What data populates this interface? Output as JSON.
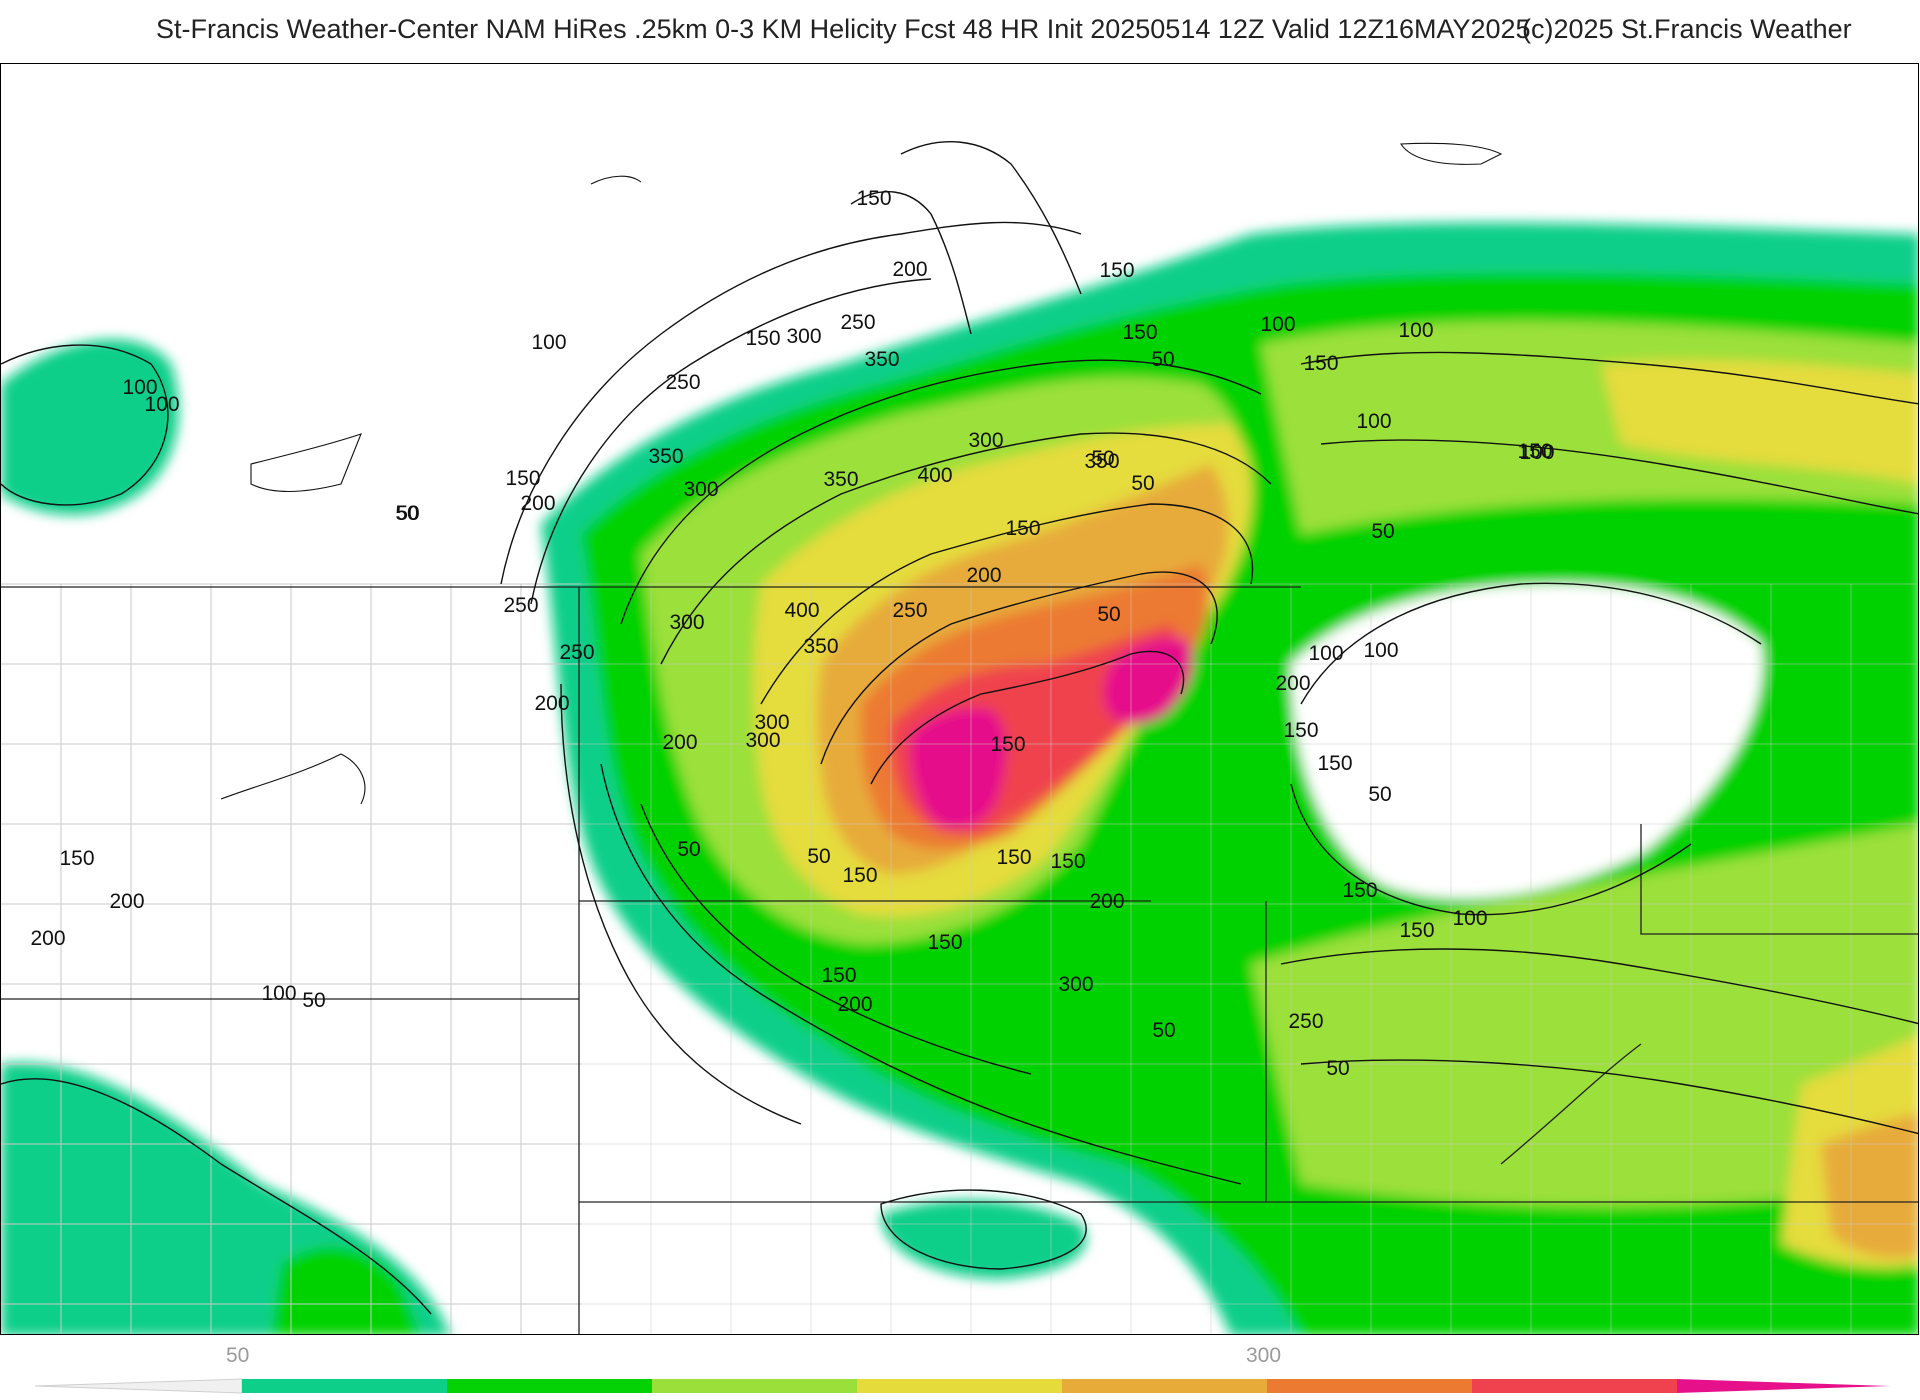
{
  "header": {
    "title": "St-Francis Weather-Center NAM HiRes .25km 0-3 KM Helicity Fcst 48 HR Init 20250514 12Z  Valid 12Z16MAY2025",
    "copyright": "(c)2025 St.Francis Weather"
  },
  "legend": {
    "tick_labels": [
      "50",
      "300"
    ],
    "colors": [
      "#0dcf8a",
      "#05d205",
      "#9be03a",
      "#e5dc3c",
      "#e7ab3a",
      "#ec7a30",
      "#f0424e",
      "#e6108b"
    ]
  },
  "contour_labels": [
    {
      "text": "150"
    },
    {
      "text": "100"
    },
    {
      "text": "150"
    },
    {
      "text": "300"
    },
    {
      "text": "200"
    },
    {
      "text": "250"
    },
    {
      "text": "350"
    },
    {
      "text": "250"
    },
    {
      "text": "300"
    },
    {
      "text": "350"
    },
    {
      "text": "350"
    },
    {
      "text": "400"
    },
    {
      "text": "350"
    },
    {
      "text": "150"
    },
    {
      "text": "200"
    },
    {
      "text": "150"
    },
    {
      "text": "50"
    },
    {
      "text": "250"
    },
    {
      "text": "300"
    },
    {
      "text": "400"
    },
    {
      "text": "300"
    },
    {
      "text": "250"
    },
    {
      "text": "250"
    },
    {
      "text": "350"
    },
    {
      "text": "200"
    },
    {
      "text": "200"
    },
    {
      "text": "300"
    },
    {
      "text": "200"
    },
    {
      "text": "300"
    },
    {
      "text": "150"
    },
    {
      "text": "50"
    },
    {
      "text": "50"
    },
    {
      "text": "150"
    },
    {
      "text": "150"
    },
    {
      "text": "150"
    },
    {
      "text": "200"
    },
    {
      "text": "150"
    },
    {
      "text": "150"
    },
    {
      "text": "50"
    },
    {
      "text": "100"
    },
    {
      "text": "100"
    },
    {
      "text": "150"
    },
    {
      "text": "100"
    },
    {
      "text": "150"
    },
    {
      "text": "50"
    },
    {
      "text": "50"
    },
    {
      "text": "50"
    },
    {
      "text": "100"
    },
    {
      "text": "100"
    },
    {
      "text": "200"
    },
    {
      "text": "150"
    },
    {
      "text": "150"
    },
    {
      "text": "50"
    },
    {
      "text": "150"
    },
    {
      "text": "100"
    },
    {
      "text": "150"
    },
    {
      "text": "150"
    },
    {
      "text": "150"
    },
    {
      "text": "200"
    },
    {
      "text": "300"
    },
    {
      "text": "250"
    },
    {
      "text": "50"
    },
    {
      "text": "50"
    },
    {
      "text": "50"
    },
    {
      "text": "100"
    },
    {
      "text": "150"
    },
    {
      "text": "200"
    },
    {
      "text": "200"
    },
    {
      "text": "100"
    },
    {
      "text": "50"
    },
    {
      "text": "100"
    },
    {
      "text": "100"
    },
    {
      "text": "50"
    }
  ]
}
